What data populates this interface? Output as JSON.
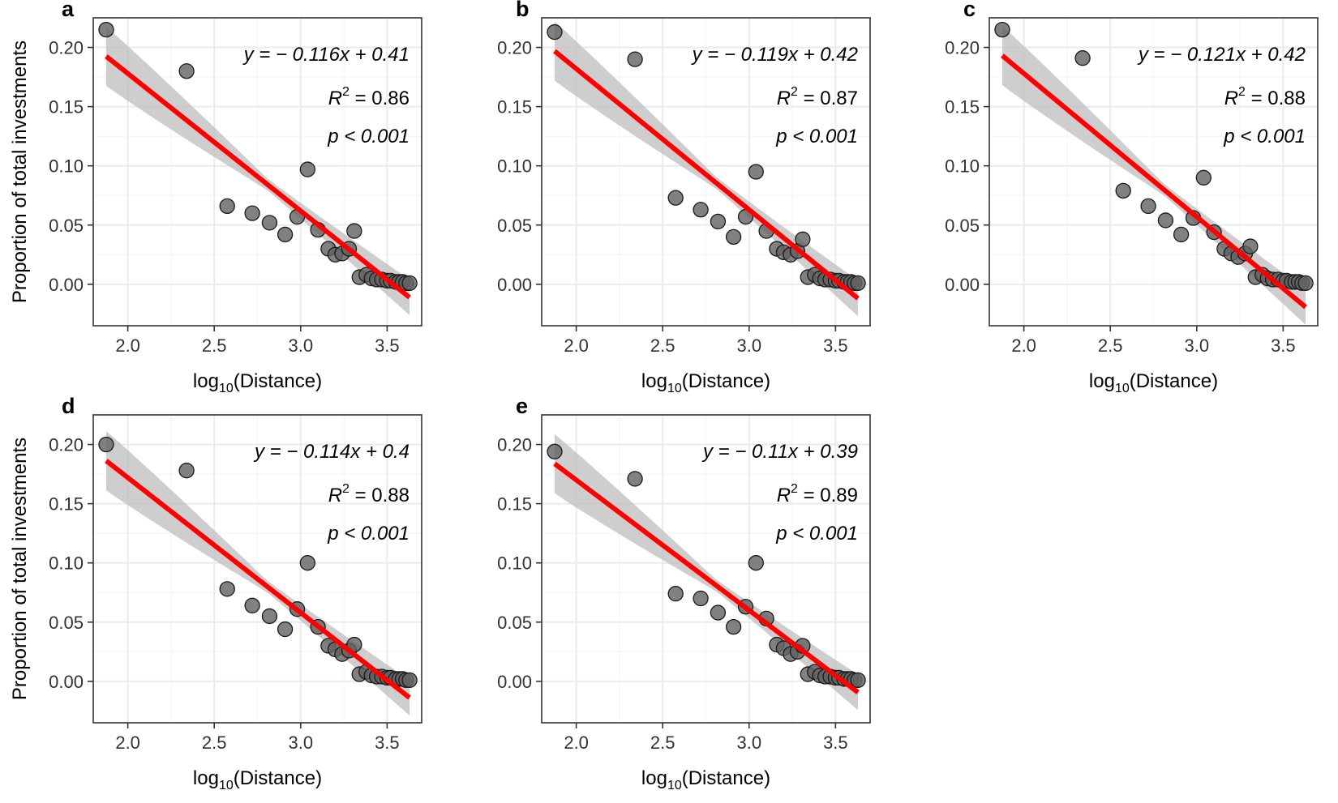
{
  "figure": {
    "ylabel": "Proportion of total investments",
    "xlabel_main": "log",
    "xlabel_sub": "10",
    "xlabel_rest": "(Distance)"
  },
  "colors": {
    "line": "#ff0000",
    "ribbon": "#bdbdbd",
    "point_fill": "#616161",
    "point_stroke": "#1a1a1a",
    "grid_major": "#ebebeb",
    "grid_minor": "#f5f5f5"
  },
  "chart_data": [
    {
      "type": "scatter",
      "panel": "a",
      "xlim": [
        1.8,
        3.7
      ],
      "ylim": [
        -0.035,
        0.225
      ],
      "xticks": [
        2.0,
        2.5,
        3.0,
        3.5
      ],
      "xtick_labels": [
        "2.0",
        "2.5",
        "3.0",
        "3.5"
      ],
      "yticks": [
        0.0,
        0.05,
        0.1,
        0.15,
        0.2
      ],
      "ytick_labels": [
        "0.00",
        "0.05",
        "0.10",
        "0.15",
        "0.20"
      ],
      "x": [
        1.875,
        2.34,
        2.575,
        2.72,
        2.82,
        2.91,
        2.98,
        3.04,
        3.1,
        3.16,
        3.2,
        3.24,
        3.28,
        3.31,
        3.34,
        3.38,
        3.41,
        3.44,
        3.47,
        3.5,
        3.52,
        3.55,
        3.57,
        3.59,
        3.61,
        3.63
      ],
      "y": [
        0.215,
        0.18,
        0.066,
        0.06,
        0.052,
        0.042,
        0.057,
        0.097,
        0.046,
        0.03,
        0.025,
        0.026,
        0.03,
        0.045,
        0.006,
        0.008,
        0.005,
        0.004,
        0.004,
        0.003,
        0.003,
        0.002,
        0.002,
        0.002,
        0.001,
        0.001
      ],
      "fit": {
        "slope": -0.116,
        "intercept": 0.41,
        "x_range": [
          1.875,
          3.63
        ],
        "band_halfwidth": [
          0.025,
          0.005,
          0.015
        ]
      },
      "annotations": {
        "equation": "y = − 0.116x + 0.41",
        "r2_value": "0.86",
        "p_text": "p < 0.001"
      }
    },
    {
      "type": "scatter",
      "panel": "b",
      "xlim": [
        1.8,
        3.7
      ],
      "ylim": [
        -0.035,
        0.225
      ],
      "xticks": [
        2.0,
        2.5,
        3.0,
        3.5
      ],
      "xtick_labels": [
        "2.0",
        "2.5",
        "3.0",
        "3.5"
      ],
      "yticks": [
        0.0,
        0.05,
        0.1,
        0.15,
        0.2
      ],
      "ytick_labels": [
        "0.00",
        "0.05",
        "0.10",
        "0.15",
        "0.20"
      ],
      "x": [
        1.875,
        2.34,
        2.575,
        2.72,
        2.82,
        2.91,
        2.98,
        3.04,
        3.1,
        3.16,
        3.2,
        3.24,
        3.28,
        3.31,
        3.34,
        3.38,
        3.41,
        3.44,
        3.47,
        3.5,
        3.52,
        3.55,
        3.57,
        3.59,
        3.61,
        3.63
      ],
      "y": [
        0.213,
        0.19,
        0.073,
        0.063,
        0.053,
        0.04,
        0.057,
        0.095,
        0.045,
        0.03,
        0.027,
        0.025,
        0.028,
        0.038,
        0.006,
        0.008,
        0.005,
        0.004,
        0.004,
        0.003,
        0.003,
        0.002,
        0.002,
        0.002,
        0.001,
        0.001
      ],
      "fit": {
        "slope": -0.119,
        "intercept": 0.42,
        "x_range": [
          1.875,
          3.63
        ],
        "band_halfwidth": [
          0.025,
          0.005,
          0.015
        ]
      },
      "annotations": {
        "equation": "y = − 0.119x + 0.42",
        "r2_value": "0.87",
        "p_text": "p < 0.001"
      }
    },
    {
      "type": "scatter",
      "panel": "c",
      "xlim": [
        1.8,
        3.7
      ],
      "ylim": [
        -0.035,
        0.225
      ],
      "xticks": [
        2.0,
        2.5,
        3.0,
        3.5
      ],
      "xtick_labels": [
        "2.0",
        "2.5",
        "3.0",
        "3.5"
      ],
      "yticks": [
        0.0,
        0.05,
        0.1,
        0.15,
        0.2
      ],
      "ytick_labels": [
        "0.00",
        "0.05",
        "0.10",
        "0.15",
        "0.20"
      ],
      "x": [
        1.875,
        2.34,
        2.575,
        2.72,
        2.82,
        2.91,
        2.98,
        3.04,
        3.1,
        3.16,
        3.2,
        3.24,
        3.28,
        3.31,
        3.34,
        3.38,
        3.41,
        3.44,
        3.47,
        3.5,
        3.52,
        3.55,
        3.57,
        3.59,
        3.61,
        3.63
      ],
      "y": [
        0.215,
        0.191,
        0.079,
        0.066,
        0.054,
        0.042,
        0.056,
        0.09,
        0.044,
        0.03,
        0.026,
        0.023,
        0.026,
        0.032,
        0.006,
        0.008,
        0.005,
        0.004,
        0.004,
        0.003,
        0.003,
        0.002,
        0.002,
        0.002,
        0.001,
        0.001
      ],
      "fit": {
        "slope": -0.121,
        "intercept": 0.42,
        "x_range": [
          1.875,
          3.63
        ],
        "band_halfwidth": [
          0.025,
          0.005,
          0.015
        ]
      },
      "annotations": {
        "equation": "y = − 0.121x + 0.42",
        "r2_value": "0.88",
        "p_text": "p < 0.001"
      }
    },
    {
      "type": "scatter",
      "panel": "d",
      "xlim": [
        1.8,
        3.7
      ],
      "ylim": [
        -0.035,
        0.225
      ],
      "xticks": [
        2.0,
        2.5,
        3.0,
        3.5
      ],
      "xtick_labels": [
        "2.0",
        "2.5",
        "3.0",
        "3.5"
      ],
      "yticks": [
        0.0,
        0.05,
        0.1,
        0.15,
        0.2
      ],
      "ytick_labels": [
        "0.00",
        "0.05",
        "0.10",
        "0.15",
        "0.20"
      ],
      "x": [
        1.875,
        2.34,
        2.575,
        2.72,
        2.82,
        2.91,
        2.98,
        3.04,
        3.1,
        3.16,
        3.2,
        3.24,
        3.28,
        3.31,
        3.34,
        3.38,
        3.41,
        3.44,
        3.47,
        3.5,
        3.52,
        3.55,
        3.57,
        3.59,
        3.61,
        3.63
      ],
      "y": [
        0.2,
        0.178,
        0.078,
        0.064,
        0.055,
        0.044,
        0.061,
        0.1,
        0.046,
        0.03,
        0.027,
        0.023,
        0.026,
        0.031,
        0.006,
        0.008,
        0.005,
        0.004,
        0.004,
        0.003,
        0.003,
        0.002,
        0.002,
        0.002,
        0.001,
        0.001
      ],
      "fit": {
        "slope": -0.114,
        "intercept": 0.4,
        "x_range": [
          1.875,
          3.63
        ],
        "band_halfwidth": [
          0.025,
          0.005,
          0.015
        ]
      },
      "annotations": {
        "equation": "y = − 0.114x + 0.4",
        "r2_value": "0.88",
        "p_text": "p < 0.001"
      }
    },
    {
      "type": "scatter",
      "panel": "e",
      "xlim": [
        1.8,
        3.7
      ],
      "ylim": [
        -0.035,
        0.225
      ],
      "xticks": [
        2.0,
        2.5,
        3.0,
        3.5
      ],
      "xtick_labels": [
        "2.0",
        "2.5",
        "3.0",
        "3.5"
      ],
      "yticks": [
        0.0,
        0.05,
        0.1,
        0.15,
        0.2
      ],
      "ytick_labels": [
        "0.00",
        "0.05",
        "0.10",
        "0.15",
        "0.20"
      ],
      "x": [
        1.875,
        2.34,
        2.575,
        2.72,
        2.82,
        2.91,
        2.98,
        3.04,
        3.1,
        3.16,
        3.2,
        3.24,
        3.28,
        3.31,
        3.34,
        3.38,
        3.41,
        3.44,
        3.47,
        3.5,
        3.52,
        3.55,
        3.57,
        3.59,
        3.61,
        3.63
      ],
      "y": [
        0.194,
        0.171,
        0.074,
        0.07,
        0.058,
        0.046,
        0.063,
        0.1,
        0.053,
        0.031,
        0.028,
        0.023,
        0.025,
        0.03,
        0.006,
        0.008,
        0.005,
        0.004,
        0.004,
        0.003,
        0.003,
        0.002,
        0.002,
        0.002,
        0.001,
        0.001
      ],
      "fit": {
        "slope": -0.11,
        "intercept": 0.39,
        "x_range": [
          1.875,
          3.63
        ],
        "band_halfwidth": [
          0.025,
          0.005,
          0.015
        ]
      },
      "annotations": {
        "equation": "y = − 0.11x + 0.39",
        "r2_value": "0.89",
        "p_text": "p < 0.001"
      }
    }
  ]
}
